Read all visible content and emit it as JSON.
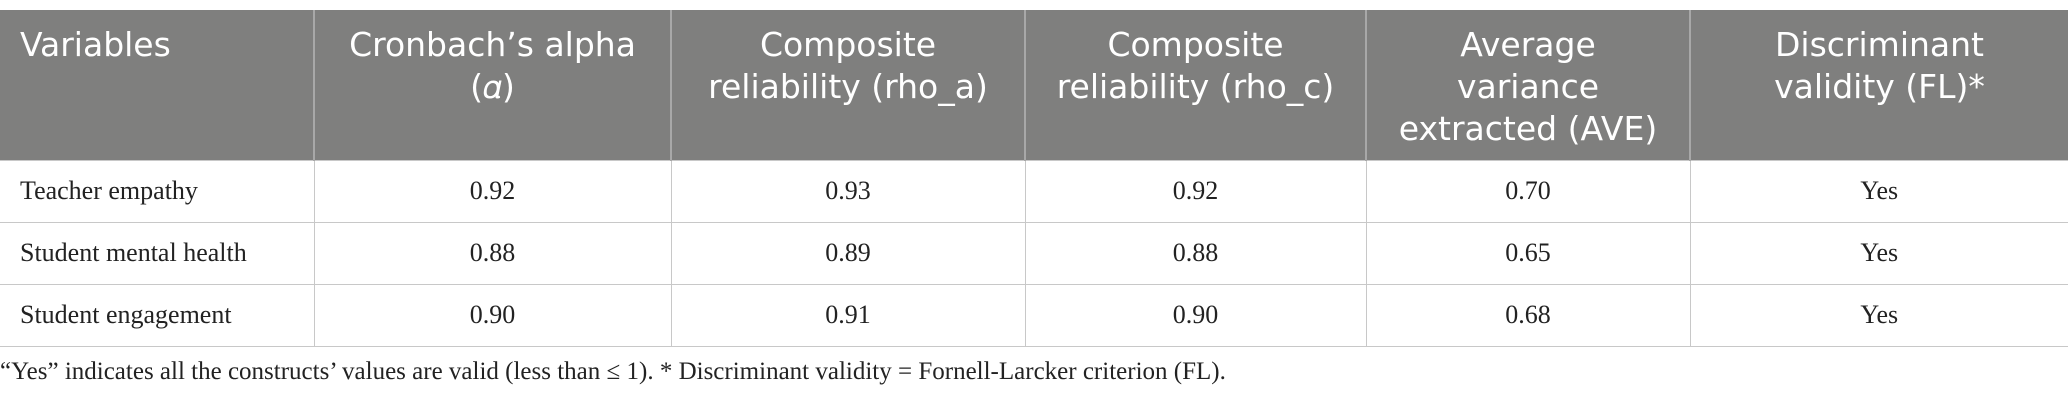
{
  "table": {
    "headers": [
      "Variables",
      "Cronbach’s alpha (𝛼)",
      "Composite reliability (rho_a)",
      "Composite reliability (rho_c)",
      "Average variance extracted (AVE)",
      "Discriminant validity (FL)*"
    ],
    "rows": [
      [
        "Teacher empathy",
        "0.92",
        "0.93",
        "0.92",
        "0.70",
        "Yes"
      ],
      [
        "Student mental health",
        "0.88",
        "0.89",
        "0.88",
        "0.65",
        "Yes"
      ],
      [
        "Student engagement",
        "0.90",
        "0.91",
        "0.90",
        "0.68",
        "Yes"
      ]
    ]
  },
  "footnote": "“Yes” indicates all the constructs’ values are valid (less than ≤ 1). * Discriminant validity = Fornell-Larcker criterion (FL)."
}
